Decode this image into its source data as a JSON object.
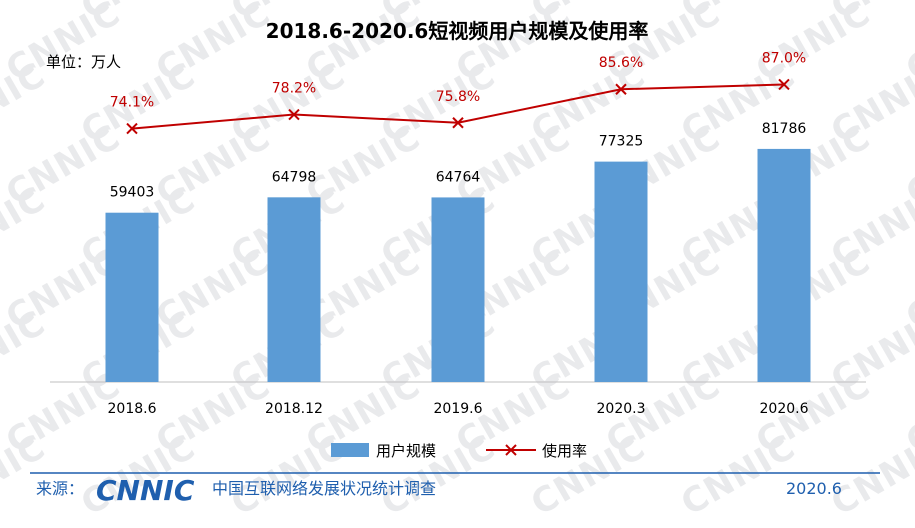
{
  "watermark_text": "CNNIC",
  "chart_data": {
    "type": "bar",
    "title": "2018.6-2020.6短视频用户规模及使用率",
    "unit_label": "单位：万人",
    "categories": [
      "2018.6",
      "2018.12",
      "2019.6",
      "2020.3",
      "2020.6"
    ],
    "series": [
      {
        "name": "用户规模",
        "kind": "bar",
        "color": "#5b9bd5",
        "values": [
          59403,
          64798,
          64764,
          77325,
          81786
        ]
      },
      {
        "name": "使用率",
        "kind": "line",
        "marker": "x",
        "color": "#c00000",
        "values": [
          74.1,
          78.2,
          75.8,
          85.6,
          87.0
        ],
        "labels": [
          "74.1%",
          "78.2%",
          "75.8%",
          "85.6%",
          "87.0%"
        ]
      }
    ],
    "bar_ylim": [
      0,
      120000
    ],
    "line_ylim": [
      0,
      100
    ],
    "legend_position": "bottom",
    "grid": false
  },
  "footer": {
    "source_label": "来源：",
    "logo_text": "CNNIC",
    "org_name": "中国互联网络发展状况统计调查",
    "date": "2020.6"
  }
}
